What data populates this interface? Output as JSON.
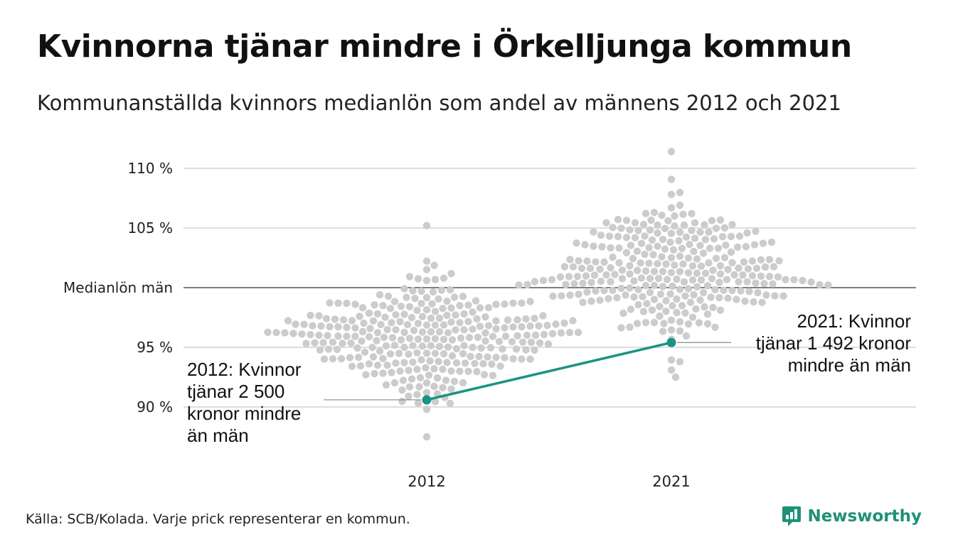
{
  "title": "Kvinnorna tjänar mindre i Örkelljunga kommun",
  "subtitle": "Kommunanställda kvinnors medianlön som andel av männens 2012 och 2021",
  "source": "Källa: SCB/Kolada. Varje prick representerar en kommun.",
  "brand": {
    "name": "Newsworthy",
    "icon": "newsworthy-logo-icon"
  },
  "colors": {
    "highlight": "#1a9384",
    "dots": "#cccccc",
    "grid": "#dedede",
    "reference": "#333333",
    "brand": "#1f9178"
  },
  "chart_data": {
    "type": "scatter",
    "categories": [
      "2012",
      "2021"
    ],
    "ylim": [
      86.5,
      111.5
    ],
    "grid": true,
    "y_ticks": [
      {
        "value": 90,
        "label": "90 %"
      },
      {
        "value": 95,
        "label": "95 %"
      },
      {
        "value": 100,
        "label": "Medianlön män"
      },
      {
        "value": 105,
        "label": "105 %"
      },
      {
        "value": 110,
        "label": "110 %"
      }
    ],
    "reference_line": {
      "value": 100,
      "label": "Medianlön män"
    },
    "distributions": [
      {
        "year": "2012",
        "count": 290,
        "center": 95.7,
        "sd": 2.5,
        "min": 87.5,
        "max": 105.2
      },
      {
        "year": "2021",
        "count": 290,
        "center": 101.3,
        "sd": 2.5,
        "min": 92.5,
        "max": 111.4
      }
    ],
    "highlight": {
      "name": "Örkelljunga kommun",
      "points": [
        {
          "x": "2012",
          "y": 90.6
        },
        {
          "x": "2021",
          "y": 95.4
        }
      ]
    },
    "annotations": [
      {
        "x": "2012",
        "y": 90.6,
        "lines": [
          "2012: Kvinnor",
          "tjänar 2 500",
          "kronor mindre",
          "än män"
        ]
      },
      {
        "x": "2021",
        "y": 95.4,
        "lines": [
          "2021: Kvinnor",
          "tjänar 1 492 kronor",
          "mindre än män"
        ]
      }
    ]
  }
}
